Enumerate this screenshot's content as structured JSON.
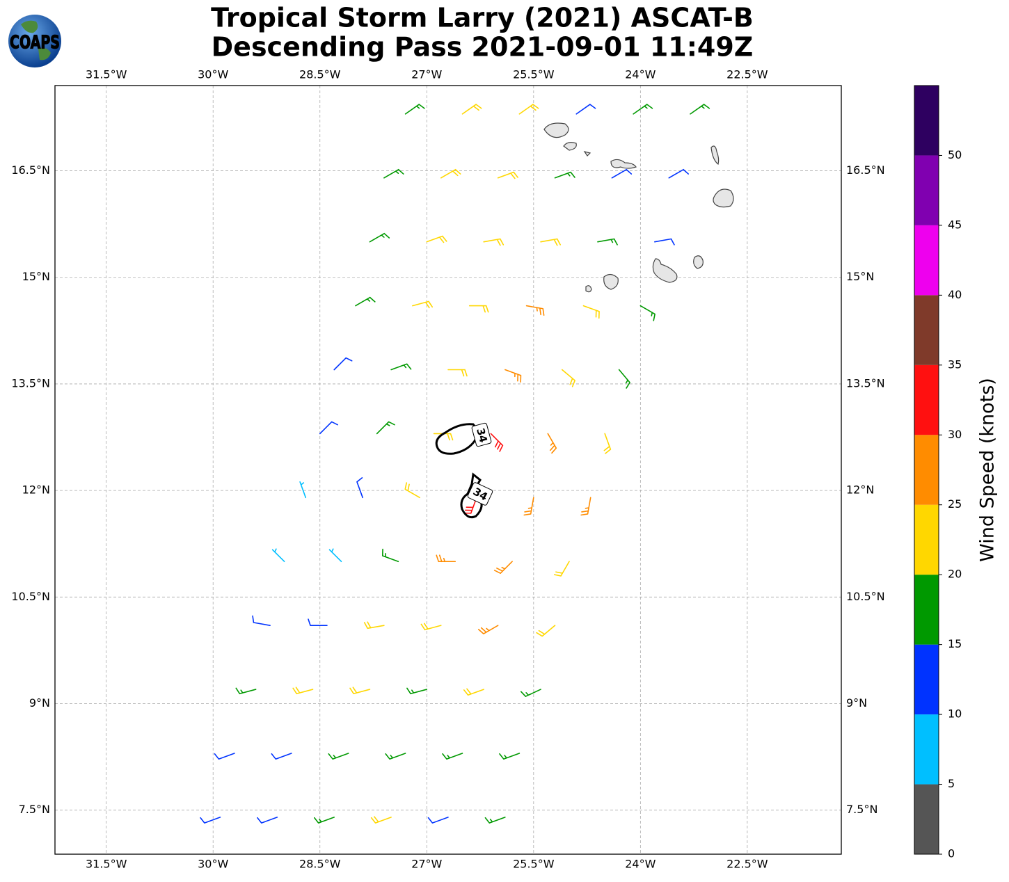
{
  "map": {
    "type": "wind-barbs",
    "title": [
      "Tropical Storm Larry (2021) ASCAT-B",
      "Descending Pass 2021-09-01 11:49Z"
    ],
    "logo_text": "COAPS",
    "xlim": [
      -32.22,
      -21.18
    ],
    "ylim": [
      6.88,
      17.7
    ],
    "xticks": [
      {
        "value": -31.5,
        "label": "31.5°W"
      },
      {
        "value": -30,
        "label": "30°W"
      },
      {
        "value": -28.5,
        "label": "28.5°W"
      },
      {
        "value": -27,
        "label": "27°W"
      },
      {
        "value": -25.5,
        "label": "25.5°W"
      },
      {
        "value": -24,
        "label": "24°W"
      },
      {
        "value": -22.5,
        "label": "22.5°W"
      }
    ],
    "yticks": [
      {
        "value": 7.5,
        "label": "7.5°N"
      },
      {
        "value": 9,
        "label": "9°N"
      },
      {
        "value": 10.5,
        "label": "10.5°N"
      },
      {
        "value": 12,
        "label": "12°N"
      },
      {
        "value": 13.5,
        "label": "13.5°N"
      },
      {
        "value": 15,
        "label": "15°N"
      },
      {
        "value": 16.5,
        "label": "16.5°N"
      }
    ],
    "grid": true,
    "contour_labels": [
      "34",
      "34"
    ],
    "barbs": [
      [
        -29.9,
        7.4,
        10,
        250
      ],
      [
        -29.1,
        7.4,
        10,
        250
      ],
      [
        -28.3,
        7.4,
        15,
        250
      ],
      [
        -27.5,
        7.4,
        20,
        250
      ],
      [
        -26.7,
        7.4,
        10,
        250
      ],
      [
        -25.9,
        7.4,
        15,
        250
      ],
      [
        -29.7,
        8.3,
        10,
        250
      ],
      [
        -28.9,
        8.3,
        10,
        250
      ],
      [
        -28.1,
        8.3,
        15,
        250
      ],
      [
        -27.3,
        8.3,
        15,
        250
      ],
      [
        -26.5,
        8.3,
        15,
        250
      ],
      [
        -25.7,
        8.3,
        15,
        250
      ],
      [
        -29.4,
        9.2,
        15,
        255
      ],
      [
        -28.6,
        9.2,
        20,
        255
      ],
      [
        -27.8,
        9.2,
        20,
        255
      ],
      [
        -27.0,
        9.2,
        15,
        255
      ],
      [
        -26.2,
        9.2,
        20,
        250
      ],
      [
        -25.4,
        9.2,
        15,
        245
      ],
      [
        -29.2,
        10.1,
        10,
        280
      ],
      [
        -28.4,
        10.1,
        10,
        270
      ],
      [
        -27.6,
        10.1,
        20,
        260
      ],
      [
        -26.8,
        10.1,
        20,
        255
      ],
      [
        -26.0,
        10.1,
        25,
        240
      ],
      [
        -25.2,
        10.1,
        20,
        230
      ],
      [
        -29.0,
        11.0,
        5,
        315
      ],
      [
        -28.2,
        11.0,
        5,
        315
      ],
      [
        -27.4,
        11.0,
        15,
        290
      ],
      [
        -26.6,
        11.0,
        25,
        270
      ],
      [
        -25.8,
        11.0,
        25,
        225
      ],
      [
        -25.0,
        11.0,
        20,
        210
      ],
      [
        -28.7,
        11.9,
        5,
        340
      ],
      [
        -27.9,
        11.9,
        10,
        340
      ],
      [
        -27.1,
        11.9,
        20,
        300
      ],
      [
        -26.3,
        11.9,
        30,
        200
      ],
      [
        -25.5,
        11.9,
        25,
        190
      ],
      [
        -24.7,
        11.9,
        25,
        190
      ],
      [
        -28.5,
        12.8,
        10,
        45
      ],
      [
        -27.7,
        12.8,
        15,
        45
      ],
      [
        -26.9,
        12.8,
        20,
        90
      ],
      [
        -26.1,
        12.8,
        30,
        135
      ],
      [
        -25.3,
        12.8,
        25,
        150
      ],
      [
        -24.5,
        12.8,
        20,
        160
      ],
      [
        -28.3,
        13.7,
        10,
        45
      ],
      [
        -27.5,
        13.7,
        15,
        70
      ],
      [
        -26.7,
        13.7,
        20,
        90
      ],
      [
        -25.9,
        13.7,
        25,
        110
      ],
      [
        -25.1,
        13.7,
        20,
        130
      ],
      [
        -24.3,
        13.7,
        15,
        140
      ],
      [
        -28.0,
        14.6,
        15,
        60
      ],
      [
        -27.2,
        14.6,
        20,
        75
      ],
      [
        -26.4,
        14.6,
        20,
        90
      ],
      [
        -25.6,
        14.6,
        25,
        100
      ],
      [
        -24.8,
        14.6,
        20,
        110
      ],
      [
        -24.0,
        14.6,
        15,
        120
      ],
      [
        -27.8,
        15.5,
        15,
        60
      ],
      [
        -27.0,
        15.5,
        20,
        70
      ],
      [
        -26.2,
        15.5,
        20,
        80
      ],
      [
        -25.4,
        15.5,
        20,
        80
      ],
      [
        -24.6,
        15.5,
        15,
        80
      ],
      [
        -23.8,
        15.5,
        10,
        80
      ],
      [
        -27.6,
        16.4,
        15,
        60
      ],
      [
        -26.8,
        16.4,
        20,
        60
      ],
      [
        -26.0,
        16.4,
        20,
        70
      ],
      [
        -25.2,
        16.4,
        15,
        70
      ],
      [
        -24.4,
        16.4,
        10,
        60
      ],
      [
        -23.6,
        16.4,
        10,
        60
      ],
      [
        -27.3,
        17.3,
        15,
        55
      ],
      [
        -26.5,
        17.3,
        20,
        55
      ],
      [
        -25.7,
        17.3,
        20,
        55
      ],
      [
        -24.9,
        17.3,
        10,
        55
      ],
      [
        -24.1,
        17.3,
        15,
        55
      ],
      [
        -23.3,
        17.3,
        15,
        55
      ]
    ],
    "colorbar": {
      "label": "Wind Speed (knots)",
      "clim": [
        0,
        55
      ],
      "levels": [
        0,
        5,
        10,
        15,
        20,
        25,
        30,
        35,
        40,
        45,
        50,
        55
      ],
      "colors": [
        "#555555",
        "#00bfff",
        "#0033ff",
        "#009900",
        "#ffd700",
        "#ff8c00",
        "#ff1010",
        "#7f3a2a",
        "#ee00ee",
        "#8000b0",
        "#2e0060"
      ],
      "ticks": [
        0,
        5,
        10,
        15,
        20,
        25,
        30,
        35,
        40,
        45,
        50
      ]
    }
  }
}
